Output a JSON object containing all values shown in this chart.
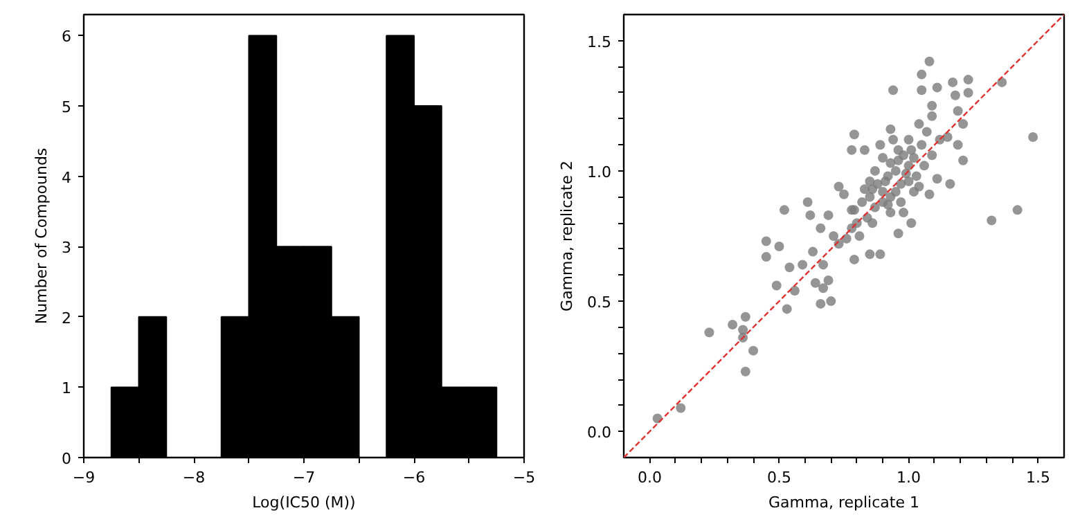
{
  "chart_data": [
    {
      "type": "histogram",
      "xlabel": "Log(IC50 (M))",
      "ylabel": "Number of Compounds",
      "color": "#000000",
      "bins": [
        -8.75,
        -8.5,
        -8.25,
        -8.0,
        -7.75,
        -7.5,
        -7.25,
        -7.0,
        -6.75,
        -6.5,
        -6.25,
        -6.0,
        -5.75,
        -5.5,
        -5.25
      ],
      "values": [
        1,
        2,
        0,
        0,
        2,
        6,
        3,
        3,
        2,
        0,
        6,
        5,
        1,
        1
      ],
      "xlim": [
        -9,
        -5
      ],
      "ylim": [
        0,
        6.3
      ],
      "xticks": [
        {
          "value": -9,
          "label": "−9"
        },
        {
          "value": -8.5,
          "label": null
        },
        {
          "value": -8,
          "label": "−8"
        },
        {
          "value": -7.5,
          "label": null
        },
        {
          "value": -7,
          "label": "−7"
        },
        {
          "value": -6.5,
          "label": null
        },
        {
          "value": -6,
          "label": "−6"
        },
        {
          "value": -5.5,
          "label": null
        },
        {
          "value": -5,
          "label": "−5"
        }
      ],
      "yticks": [
        0,
        1,
        2,
        3,
        4,
        5,
        6
      ],
      "grid": false
    },
    {
      "type": "scatter",
      "xlabel": "Gamma, replicate 1",
      "ylabel": "Gamma, replicate 2",
      "grid": false,
      "xlim": [
        -0.1,
        1.6
      ],
      "ylim": [
        -0.1,
        1.6
      ],
      "xticks": [
        {
          "value": 0,
          "label": "0.0"
        },
        {
          "value": 0.1,
          "label": null
        },
        {
          "value": 0.2,
          "label": null
        },
        {
          "value": 0.3,
          "label": null
        },
        {
          "value": 0.4,
          "label": null
        },
        {
          "value": 0.5,
          "label": "0.5"
        },
        {
          "value": 0.6,
          "label": null
        },
        {
          "value": 0.7,
          "label": null
        },
        {
          "value": 0.8,
          "label": null
        },
        {
          "value": 0.9,
          "label": null
        },
        {
          "value": 1.0,
          "label": "1.0"
        },
        {
          "value": 1.1,
          "label": null
        },
        {
          "value": 1.2,
          "label": null
        },
        {
          "value": 1.3,
          "label": null
        },
        {
          "value": 1.4,
          "label": null
        },
        {
          "value": 1.5,
          "label": "1.5"
        }
      ],
      "yticks": [
        {
          "value": 0,
          "label": "0.0"
        },
        {
          "value": 0.1,
          "label": null
        },
        {
          "value": 0.2,
          "label": null
        },
        {
          "value": 0.3,
          "label": null
        },
        {
          "value": 0.4,
          "label": null
        },
        {
          "value": 0.5,
          "label": "0.5"
        },
        {
          "value": 0.6,
          "label": null
        },
        {
          "value": 0.7,
          "label": null
        },
        {
          "value": 0.8,
          "label": null
        },
        {
          "value": 0.9,
          "label": null
        },
        {
          "value": 1.0,
          "label": "1.0"
        },
        {
          "value": 1.1,
          "label": null
        },
        {
          "value": 1.2,
          "label": null
        },
        {
          "value": 1.3,
          "label": null
        },
        {
          "value": 1.4,
          "label": null
        },
        {
          "value": 1.5,
          "label": "1.5"
        }
      ],
      "series": [
        {
          "type": "scatter",
          "marker": "circle",
          "color": "#7a7a7a",
          "x": [
            0.03,
            0.12,
            0.23,
            0.32,
            0.37,
            0.36,
            0.36,
            0.4,
            0.37,
            0.45,
            0.45,
            0.5,
            0.49,
            0.52,
            0.53,
            0.54,
            0.56,
            0.59,
            0.61,
            0.62,
            0.63,
            0.64,
            0.66,
            0.67,
            0.7,
            0.69,
            0.67,
            0.66,
            0.73,
            0.79,
            0.79,
            0.78,
            0.83,
            0.94,
            0.93,
            0.85,
            0.89,
            0.96,
            1.05,
            1.08,
            1.05,
            1.11,
            1.17,
            1.23,
            1.23,
            1.18,
            1.09,
            1.19,
            1.36,
            1.21,
            1.21,
            1.48,
            1.32,
            1.42,
            1.08,
            1.16,
            1.11,
            1.19,
            1.15,
            1.09,
            1.01,
            0.75,
            0.69,
            0.71,
            0.78,
            0.86,
            0.93,
            0.85,
            0.88,
            0.9,
            0.92,
            0.95,
            0.97,
            1.0,
            1.02,
            0.98,
            0.93,
            0.9,
            0.87,
            0.84,
            0.82,
            0.8,
            0.78,
            0.76,
            0.73,
            0.95,
            1.0,
            1.03,
            1.05,
            1.07,
            1.04,
            1.0,
            0.96,
            0.9,
            0.87,
            0.85,
            0.83,
            0.92,
            0.97,
            1.02,
            1.06,
            1.09,
            1.12,
            0.89,
            0.94,
            0.98,
            0.81,
            0.79,
            0.91,
            0.99,
            1.01,
            0.86,
            1.04,
            0.93,
            0.96
          ],
          "values": [
            0.05,
            0.09,
            0.38,
            0.41,
            0.44,
            0.39,
            0.36,
            0.31,
            0.23,
            0.73,
            0.67,
            0.71,
            0.56,
            0.85,
            0.47,
            0.63,
            0.54,
            0.64,
            0.88,
            0.83,
            0.69,
            0.57,
            0.49,
            0.55,
            0.5,
            0.58,
            0.64,
            0.78,
            0.94,
            0.66,
            1.14,
            1.08,
            1.08,
            1.31,
            1.16,
            0.68,
            0.68,
            0.76,
            1.37,
            1.42,
            1.31,
            1.32,
            1.34,
            1.35,
            1.3,
            1.29,
            1.25,
            1.23,
            1.34,
            1.18,
            1.04,
            1.13,
            0.81,
            0.85,
            0.91,
            0.95,
            0.97,
            1.1,
            1.13,
            1.21,
            0.8,
            0.91,
            0.83,
            0.75,
            0.85,
            0.8,
            0.84,
            0.9,
            0.95,
            0.92,
            0.98,
            1.0,
            0.95,
            1.02,
            1.05,
            1.06,
            1.03,
            0.88,
            0.86,
            0.82,
            0.88,
            0.8,
            0.78,
            0.74,
            0.72,
            0.92,
            0.96,
            0.98,
            1.1,
            1.15,
            1.18,
            1.12,
            1.08,
            1.05,
            1.0,
            0.96,
            0.93,
            0.87,
            0.88,
            0.92,
            1.02,
            1.06,
            1.12,
            1.1,
            1.12,
            0.84,
            0.75,
            0.85,
            0.96,
            0.99,
            1.08,
            0.93,
            0.94,
            0.9,
            1.04
          ]
        },
        {
          "type": "line",
          "marker": "none",
          "color": "#e03030",
          "line_style": "dashed",
          "x": [
            -0.1,
            1.6
          ],
          "values": [
            -0.1,
            1.6
          ]
        }
      ]
    }
  ]
}
